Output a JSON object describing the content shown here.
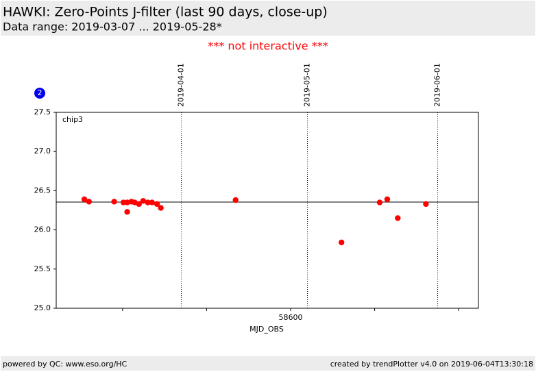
{
  "header": {
    "title": "HAWKI: Zero-Points J-filter (last 90 days, close-up)",
    "subtitle": "Data range: 2019-03-07 ... 2019-05-28*"
  },
  "notice": "*** not interactive ***",
  "badge": "2",
  "chart_data": {
    "type": "scatter",
    "panel_label": "chip3",
    "x_label": "MJD_OBS",
    "color": "#ff0000",
    "x": [
      58550.9,
      58552.0,
      58558.0,
      58560.2,
      58561.1,
      58561.1,
      58562.1,
      58562.9,
      58563.9,
      58564.9,
      58566.0,
      58567.0,
      58568.2,
      58569.1,
      58586.9,
      58612.1,
      58621.2,
      58623.0,
      58625.5,
      58632.2
    ],
    "values": [
      26.39,
      26.36,
      26.36,
      26.35,
      26.35,
      26.23,
      26.36,
      26.35,
      26.33,
      26.37,
      26.35,
      26.35,
      26.33,
      26.28,
      26.38,
      25.84,
      26.35,
      26.39,
      26.15,
      26.33
    ],
    "xlim": [
      58544.2,
      58644.7
    ],
    "xticks": [
      58600
    ],
    "xminor_ticks": [
      58560,
      58580,
      58620,
      58640
    ],
    "ylim": [
      25.0,
      27.5
    ],
    "yticks": [
      {
        "value": 25.0,
        "label": "25.0"
      },
      25.5,
      {
        "value": 26.0,
        "label": "26.0"
      },
      26.5,
      {
        "value": 27.0,
        "label": "27.0"
      },
      27.5
    ],
    "hline": 26.355,
    "date_lines": [
      {
        "x": 58574,
        "label": "2019-04-01"
      },
      {
        "x": 58604,
        "label": "2019-05-01"
      },
      {
        "x": 58635,
        "label": "2019-06-01"
      }
    ]
  },
  "footer": {
    "left": "powered by QC: www.eso.org/HC",
    "right": "created by trendPlotter v4.0 on 2019-06-04T13:30:18"
  }
}
